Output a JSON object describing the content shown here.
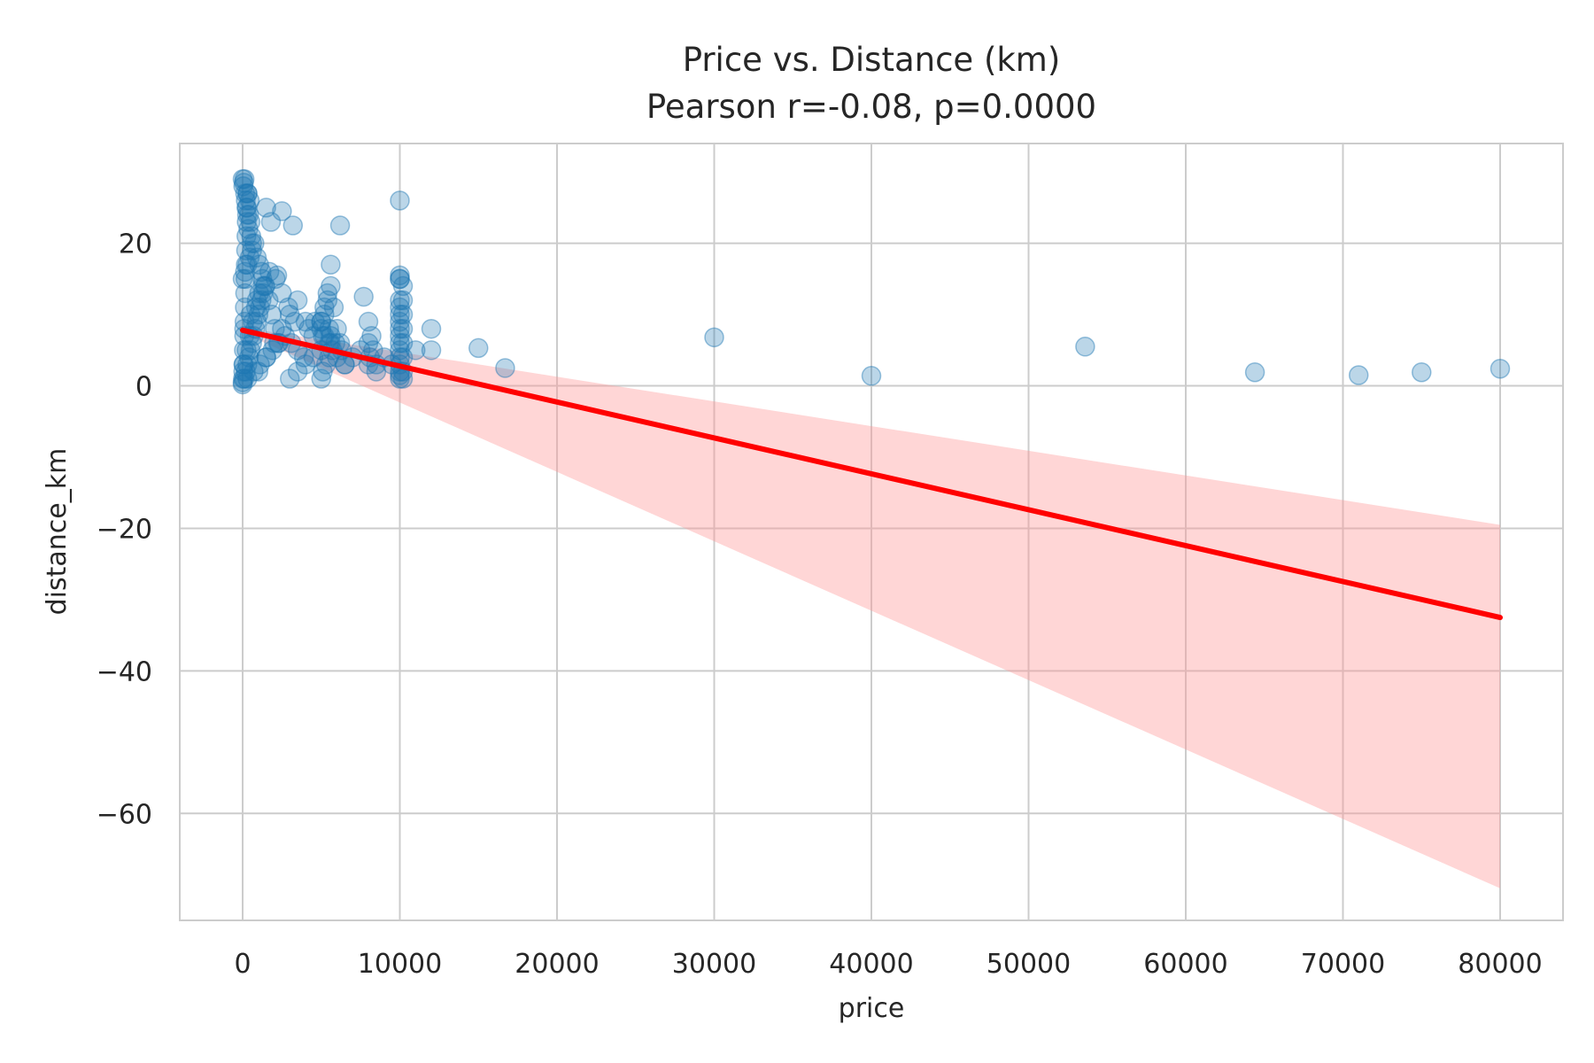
{
  "chart_data": {
    "type": "scatter",
    "title": "Price vs. Distance (km)",
    "subtitle": "Pearson r=-0.08, p=0.0000",
    "xlabel": "price",
    "ylabel": "distance_km",
    "xlim": [
      -4000,
      84000
    ],
    "ylim": [
      -75,
      34
    ],
    "xticks": [
      0,
      10000,
      20000,
      30000,
      40000,
      50000,
      60000,
      70000,
      80000
    ],
    "yticks": [
      20,
      0,
      -20,
      -40,
      -60
    ],
    "xtick_labels": [
      "0",
      "10000",
      "20000",
      "30000",
      "40000",
      "50000",
      "60000",
      "70000",
      "80000"
    ],
    "ytick_labels": [
      "20",
      "0",
      "−20",
      "−40",
      "−60"
    ],
    "grid": true,
    "colors": {
      "points": "#1f77b4",
      "line": "#ff0000",
      "band": "#ff9999",
      "grid": "#cccccc"
    },
    "series": [
      {
        "kind": "points",
        "x": [
          0,
          20,
          40,
          60,
          80,
          100,
          120,
          140,
          160,
          180,
          200,
          220,
          240,
          260,
          280,
          300,
          0,
          40,
          80,
          120,
          160,
          200,
          240,
          280,
          320,
          360,
          400,
          450,
          500,
          550,
          600,
          0,
          100,
          200,
          300,
          400,
          500,
          600,
          700,
          800,
          900,
          1000,
          1100,
          1200,
          1300,
          1400,
          0,
          150,
          300,
          450,
          600,
          750,
          900,
          1050,
          1200,
          50,
          250,
          450,
          650,
          850,
          1050,
          1250,
          1450,
          1650,
          1850,
          2050,
          2250,
          300,
          700,
          1100,
          1500,
          1900,
          2300,
          2700,
          3100,
          3500,
          3900,
          100,
          500,
          900,
          1300,
          1700,
          2100,
          2500,
          2900,
          3300,
          1000,
          1500,
          2000,
          2500,
          3000,
          3500,
          4000,
          4500,
          2500,
          3200,
          1500,
          1800,
          2200,
          3000,
          3500,
          4000,
          4500,
          5000,
          5500,
          6000,
          6500,
          5000,
          5200,
          5400,
          5600,
          5800,
          5000,
          5200,
          5400,
          5600,
          5000,
          5100,
          5300,
          5500,
          5700,
          5900,
          5000,
          5200,
          5600,
          6000,
          6200,
          6300,
          4200,
          4600,
          5100,
          5500,
          6500,
          7000,
          7500,
          8000,
          8500,
          9000,
          9500,
          7700,
          8000,
          8200,
          8000,
          8100,
          8300,
          8500,
          10000,
          10000,
          10000,
          10000,
          10000,
          10000,
          10000,
          10000,
          10000,
          10000,
          10000,
          10000,
          10000,
          10000,
          10000,
          10000,
          10200,
          10200,
          10200,
          10200,
          10200,
          10200,
          10200,
          10200,
          10000,
          6200,
          5600,
          11000,
          12000,
          12000,
          15000,
          16700,
          30000,
          40000,
          53600,
          64400,
          71000,
          75000,
          80000
        ],
        "y": [
          0.5,
          1,
          2,
          3,
          5,
          7,
          9,
          11,
          13,
          15,
          17,
          19,
          21,
          23,
          25,
          27,
          29,
          28,
          28.5,
          29,
          27,
          26,
          25,
          24,
          27,
          22,
          24,
          26,
          23,
          21,
          20,
          0.2,
          1,
          2,
          3,
          4,
          5,
          6,
          7,
          8,
          9,
          10,
          11,
          12,
          13,
          14,
          15,
          16,
          17,
          18,
          19,
          20,
          18,
          17,
          16,
          3,
          5,
          7,
          9,
          11,
          13,
          15,
          14,
          12,
          10,
          8,
          6,
          1,
          2,
          3,
          4,
          5,
          6,
          7,
          6,
          5,
          4,
          8,
          10,
          12,
          14,
          16,
          15,
          13,
          11,
          9,
          2,
          4,
          6,
          8,
          10,
          12,
          9,
          7,
          24.5,
          22.5,
          25,
          23,
          15.5,
          1,
          2,
          3,
          4,
          5,
          6,
          4,
          3,
          8,
          10,
          12,
          14,
          11,
          9,
          7,
          13,
          6,
          1,
          2,
          3,
          4,
          5,
          6,
          9,
          11,
          7,
          8,
          6,
          5,
          8,
          9,
          7,
          8,
          3,
          4,
          5,
          3,
          2,
          4,
          3,
          12.5,
          9,
          7,
          6,
          4,
          5,
          3,
          26,
          15.5,
          15,
          12,
          11,
          10,
          9,
          8,
          7,
          6,
          5,
          4,
          3,
          2,
          1.5,
          1,
          14,
          12,
          10,
          8,
          6,
          4,
          2,
          1,
          15,
          22.5,
          17,
          5,
          8,
          5,
          5.3,
          2.5,
          6.8,
          1.4,
          5.5,
          1.9,
          1.5,
          1.9,
          2.4
        ]
      },
      {
        "kind": "regression",
        "name": "",
        "x": [
          0,
          80000
        ],
        "y": [
          7.8,
          -32.5
        ]
      },
      {
        "kind": "confidence-band",
        "x": [
          0,
          80000
        ],
        "upper": [
          8.2,
          -19.5
        ],
        "lower": [
          7.4,
          -70.5
        ]
      }
    ]
  }
}
